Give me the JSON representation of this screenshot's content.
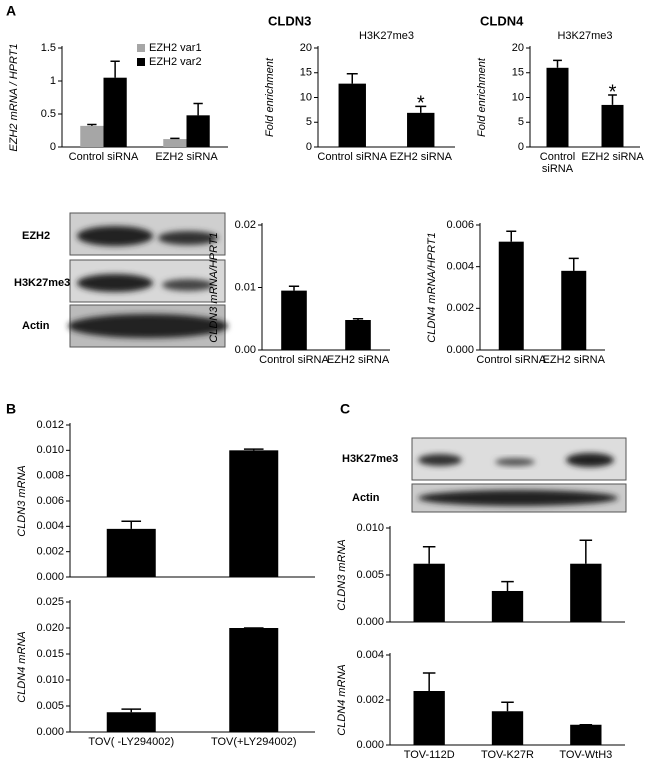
{
  "panel_labels": [
    "A",
    "B",
    "C"
  ],
  "blots": {
    "A": [
      "EZH2",
      "H3K27me3",
      "Actin"
    ],
    "C": [
      "H3K27me3",
      "Actin"
    ]
  },
  "chart_data": [
    {
      "type": "bar",
      "ylabel": "EZH2 mRNA / HPRT1",
      "categories": [
        "Control siRNA",
        "EZH2 siRNA"
      ],
      "series": [
        {
          "name": "EZH2 var1",
          "color": "#a6a6a6",
          "values": [
            0.32,
            0.12
          ],
          "errors": [
            0.02,
            0.01
          ]
        },
        {
          "name": "EZH2 var2",
          "color": "#000000",
          "values": [
            1.05,
            0.48
          ],
          "errors": [
            0.25,
            0.18
          ]
        }
      ],
      "ylim": [
        0,
        1.5
      ],
      "yticks": [
        0,
        0.5,
        1,
        1.5
      ]
    },
    {
      "type": "bar",
      "title": "CLDN3",
      "subtitle": "H3K27me3",
      "ylabel": "Fold enrichment",
      "categories": [
        "Control siRNA",
        "EZH2 siRNA"
      ],
      "series": [
        {
          "color": "#000000",
          "values": [
            12.8,
            6.9
          ],
          "errors": [
            2.0,
            1.3
          ]
        }
      ],
      "ylim": [
        0,
        20
      ],
      "yticks": [
        0,
        5,
        10,
        15,
        20
      ],
      "annotations": [
        {
          "text": "*",
          "category": "EZH2 siRNA"
        }
      ]
    },
    {
      "type": "bar",
      "title": "CLDN4",
      "subtitle": "H3K27me3",
      "ylabel": "Fold enrichment",
      "categories": [
        "Control siRNA",
        "EZH2 siRNA"
      ],
      "series": [
        {
          "color": "#000000",
          "values": [
            16,
            8.5
          ],
          "errors": [
            1.5,
            2.0
          ]
        }
      ],
      "ylim": [
        0,
        20
      ],
      "yticks": [
        0,
        5,
        10,
        15,
        20
      ],
      "annotations": [
        {
          "text": "*",
          "category": "EZH2 siRNA"
        }
      ]
    },
    {
      "type": "bar",
      "ylabel": "CLDN3 mRNA/HPRT1",
      "categories": [
        "Control siRNA",
        "EZH2 siRNA"
      ],
      "series": [
        {
          "color": "#000000",
          "values": [
            0.0095,
            0.0048
          ],
          "errors": [
            0.0007,
            0.0002
          ]
        }
      ],
      "ylim": [
        0,
        0.02
      ],
      "yticks": [
        {
          "value": 0,
          "label": "0.00"
        },
        {
          "value": 0.01,
          "label": "0.01"
        },
        {
          "value": 0.02,
          "label": "0.02"
        }
      ]
    },
    {
      "type": "bar",
      "ylabel": "CLDN4 mRNA/HPRT1",
      "categories": [
        "Control siRNA",
        "EZH2 siRNA"
      ],
      "series": [
        {
          "color": "#000000",
          "values": [
            0.0052,
            0.0038
          ],
          "errors": [
            0.0005,
            0.0006
          ]
        }
      ],
      "ylim": [
        0,
        0.006
      ],
      "yticks": [
        {
          "value": 0,
          "label": "0.000"
        },
        {
          "value": 0.002,
          "label": "0.002"
        },
        {
          "value": 0.004,
          "label": "0.004"
        },
        {
          "value": 0.006,
          "label": "0.006"
        }
      ]
    },
    {
      "type": "bar",
      "ylabel": "CLDN3 mRNA",
      "categories": [
        null,
        null
      ],
      "series": [
        {
          "color": "#000000",
          "values": [
            0.0038,
            0.01
          ],
          "errors": [
            0.0006,
            0.0001
          ]
        }
      ],
      "ylim": [
        0,
        0.012
      ],
      "yticks": [
        {
          "value": 0,
          "label": "0.000"
        },
        {
          "value": 0.002,
          "label": "0.002"
        },
        {
          "value": 0.004,
          "label": "0.004"
        },
        {
          "value": 0.006,
          "label": "0.006"
        },
        {
          "value": 0.008,
          "label": "0.008"
        },
        {
          "value": 0.01,
          "label": "0.010"
        },
        {
          "value": 0.012,
          "label": "0.012"
        }
      ]
    },
    {
      "type": "bar",
      "ylabel": "CLDN4 mRNA",
      "categories": [
        "TOV( -LY294002)",
        "TOV(+LY294002)"
      ],
      "series": [
        {
          "color": "#000000",
          "values": [
            0.0038,
            0.02
          ],
          "errors": [
            0.0006,
            0
          ]
        }
      ],
      "ylim": [
        0,
        0.025
      ],
      "yticks": [
        {
          "value": 0,
          "label": "0.000"
        },
        {
          "value": 0.005,
          "label": "0.005"
        },
        {
          "value": 0.01,
          "label": "0.010"
        },
        {
          "value": 0.015,
          "label": "0.015"
        },
        {
          "value": 0.02,
          "label": "0.020"
        },
        {
          "value": 0.025,
          "label": "0.025"
        }
      ]
    },
    {
      "type": "bar",
      "ylabel": "CLDN3 mRNA",
      "categories": [
        null,
        null,
        null
      ],
      "series": [
        {
          "color": "#000000",
          "values": [
            0.0062,
            0.0033,
            0.0062
          ],
          "errors": [
            0.0018,
            0.001,
            0.0025
          ]
        }
      ],
      "ylim": [
        0,
        0.01
      ],
      "yticks": [
        {
          "value": 0,
          "label": "0.000"
        },
        {
          "value": 0.005,
          "label": "0.005"
        },
        {
          "value": 0.01,
          "label": "0.010"
        }
      ]
    },
    {
      "type": "bar",
      "ylabel": "CLDN4 mRNA",
      "categories": [
        "TOV-112D",
        "TOV-K27R",
        "TOV-WtH3"
      ],
      "series": [
        {
          "color": "#000000",
          "values": [
            0.0024,
            0.0015,
            0.0009
          ],
          "errors": [
            0.0008,
            0.0004,
            0
          ]
        }
      ],
      "ylim": [
        0,
        0.004
      ],
      "yticks": [
        {
          "value": 0,
          "label": "0.000"
        },
        {
          "value": 0.002,
          "label": "0.002"
        },
        {
          "value": 0.004,
          "label": "0.004"
        }
      ]
    }
  ]
}
